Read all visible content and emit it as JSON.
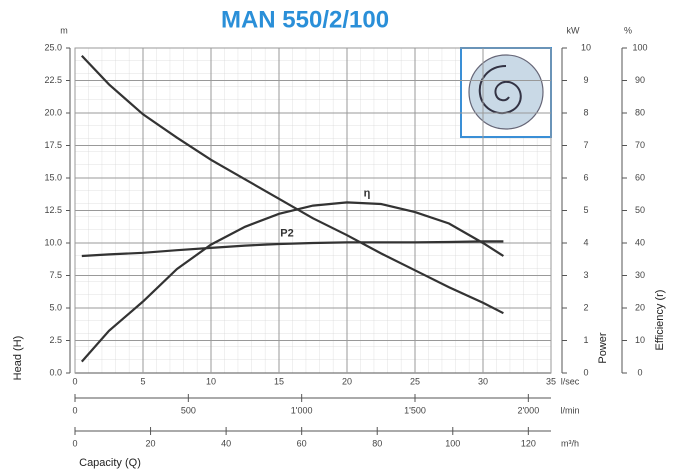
{
  "chart_data": {
    "type": "line",
    "title": "MAN 550/2/100",
    "xlabel": "Capacity  (Q)",
    "ylabel": "Head (H)",
    "y2label": "Power",
    "y3label": "Efficiency (r)",
    "yunit": "m",
    "y2unit": "kW",
    "y3unit": "%",
    "xunit": "l/sec",
    "x": [
      0.5,
      2.5,
      5,
      7.5,
      10,
      12.5,
      15,
      17.5,
      20,
      22.5,
      25,
      27.5,
      30,
      31.5
    ],
    "series": [
      {
        "color": "#333333",
        "values": [
          24.4,
          22.2,
          19.9,
          18.1,
          16.4,
          14.9,
          13.4,
          11.9,
          10.6,
          9.2,
          7.9,
          6.6,
          5.4,
          4.6
        ]
      },
      {
        "name": "P2",
        "color": "#333333",
        "axis": "y2",
        "values": [
          3.6,
          3.65,
          3.7,
          3.78,
          3.85,
          3.92,
          3.97,
          4.0,
          4.02,
          4.02,
          4.02,
          4.03,
          4.05,
          4.05
        ]
      },
      {
        "name": "η",
        "color": "#333333",
        "axis": "y3",
        "values": [
          3.5,
          13,
          22,
          32,
          39.5,
          45,
          49,
          51.5,
          52.5,
          52,
          49.5,
          46,
          40,
          36
        ]
      }
    ],
    "xlim": [
      0,
      35
    ],
    "xticks": [
      0,
      5,
      10,
      15,
      20,
      25,
      30,
      35
    ],
    "ylim": [
      0,
      25
    ],
    "yticks": [
      {
        "value": 0,
        "label": "0.0"
      },
      2.5,
      {
        "value": 5,
        "label": "5.0"
      },
      7.5,
      {
        "value": 10,
        "label": "10.0"
      },
      12.5,
      {
        "value": 15,
        "label": "15.0"
      },
      17.5,
      {
        "value": 20,
        "label": "20.0"
      },
      22.5,
      {
        "value": 25,
        "label": "25.0"
      }
    ],
    "y2lim": [
      0,
      10
    ],
    "y2ticks": [
      0,
      1,
      2,
      3,
      4,
      5,
      6,
      7,
      8,
      9,
      10
    ],
    "y3lim": [
      0,
      100
    ],
    "y3ticks": [
      0,
      10,
      20,
      30,
      40,
      50,
      60,
      70,
      80,
      90,
      100
    ],
    "extra_x_axes": [
      {
        "unit": "l/min",
        "lim": [
          0,
          2100
        ],
        "ticks": [
          0,
          500,
          {
            "value": 1000,
            "label": "1'000"
          },
          {
            "value": 1500,
            "label": "1'500"
          },
          {
            "value": 2000,
            "label": "2'000"
          }
        ]
      },
      {
        "unit": "m³/h",
        "lim": [
          0,
          126
        ],
        "ticks": [
          0,
          20,
          40,
          60,
          80,
          100,
          120
        ]
      }
    ],
    "grid": true
  }
}
